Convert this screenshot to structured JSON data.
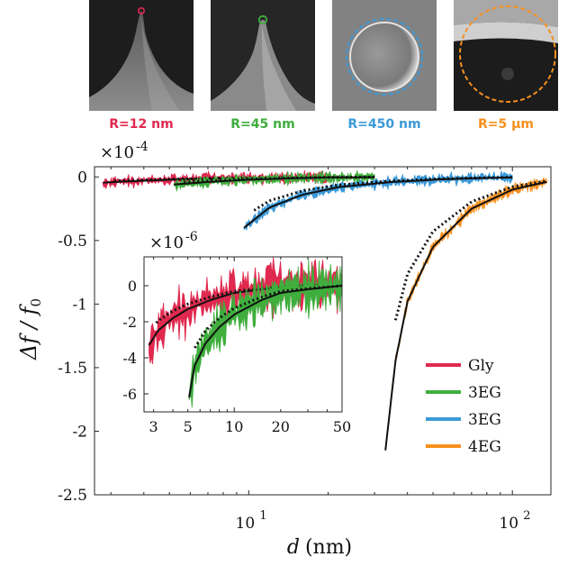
{
  "tips": [
    {
      "label": "R=12 nm",
      "color": "#e0294f",
      "image": "sharp-tip-sem-image"
    },
    {
      "label": "R=45 nm",
      "color": "#3fae3d",
      "image": "blunt-tip-sem-image"
    },
    {
      "label": "R=450 nm",
      "color": "#3c9ad8",
      "image": "sphere-sem-image"
    },
    {
      "label": "R=5 μm",
      "color": "#f7901e",
      "image": "large-sphere-sem-image"
    }
  ],
  "chart_data": [
    {
      "type": "line",
      "xlabel_var": "d",
      "xlabel_unit": "(nm)",
      "ylabel_main": "Δf / f",
      "ylabel_sub": "0",
      "y_exponent_base": "×10",
      "y_exponent_power": "-4",
      "xscale": "log",
      "xlim": [
        2.6,
        140
      ],
      "ylim": [
        -2.5,
        0.08
      ],
      "x_ticks": [
        {
          "v": 10,
          "base": "10",
          "exp": "1"
        },
        {
          "v": 100,
          "base": "10",
          "exp": "2"
        }
      ],
      "y_ticks": [
        {
          "v": 0,
          "label": "0"
        },
        {
          "v": -0.5,
          "label": "-0.5"
        },
        {
          "v": -1,
          "label": "-1"
        },
        {
          "v": -1.5,
          "label": "-1.5"
        },
        {
          "v": -2,
          "label": "-2"
        },
        {
          "v": -2.5,
          "label": "-2.5"
        }
      ],
      "legend_position": "lower-right",
      "series": [
        {
          "name": "Gly",
          "color": "#e0294f",
          "x": [
            2.8,
            3.5,
            5,
            8,
            13,
            20
          ],
          "y": [
            -0.045,
            -0.035,
            -0.022,
            -0.012,
            -0.006,
            -0.003
          ]
        },
        {
          "name": "3EG",
          "color": "#3fae3d",
          "x": [
            5.2,
            7,
            10,
            15,
            20,
            30
          ],
          "y": [
            -0.06,
            -0.04,
            -0.022,
            -0.01,
            -0.004,
            -0.002
          ]
        },
        {
          "name": "3EG",
          "color": "#3c9ad8",
          "x": [
            9.6,
            12,
            16,
            22,
            35,
            55,
            80,
            100
          ],
          "y": [
            -0.4,
            -0.24,
            -0.14,
            -0.08,
            -0.04,
            -0.018,
            -0.008,
            -0.004
          ]
        },
        {
          "name": "4EG",
          "color": "#f7901e",
          "x": [
            33,
            36,
            40,
            50,
            70,
            100,
            135
          ],
          "y": [
            -2.15,
            -1.45,
            -0.98,
            -0.55,
            -0.25,
            -0.1,
            -0.04
          ]
        }
      ]
    },
    {
      "type": "line",
      "xscale": "log",
      "xlim": [
        2.6,
        50
      ],
      "ylim": [
        -7,
        1.6
      ],
      "y_exponent_base": "×10",
      "y_exponent_power": "-6",
      "x_ticks": [
        {
          "v": 3,
          "label": "3"
        },
        {
          "v": 5,
          "label": "5"
        },
        {
          "v": 10,
          "label": "10"
        },
        {
          "v": 20,
          "label": "20"
        },
        {
          "v": 50,
          "label": "50"
        }
      ],
      "y_ticks": [
        {
          "v": 0,
          "label": "0"
        },
        {
          "v": -2,
          "label": "-2"
        },
        {
          "v": -4,
          "label": "-4"
        },
        {
          "v": -6,
          "label": "-6"
        }
      ],
      "series": [
        {
          "name": "Gly",
          "color": "#e0294f",
          "x": [
            2.8,
            3.2,
            4,
            5,
            7,
            10,
            15,
            25,
            50
          ],
          "y": [
            -3.3,
            -2.5,
            -1.8,
            -1.3,
            -0.8,
            -0.4,
            -0.2,
            0,
            0.1
          ]
        },
        {
          "name": "3EG",
          "color": "#3fae3d",
          "x": [
            5.1,
            5.5,
            6.5,
            8,
            10,
            15,
            20,
            30,
            50
          ],
          "y": [
            -6.2,
            -4.5,
            -3.2,
            -2.3,
            -1.6,
            -0.8,
            -0.4,
            -0.2,
            0
          ]
        }
      ]
    }
  ]
}
